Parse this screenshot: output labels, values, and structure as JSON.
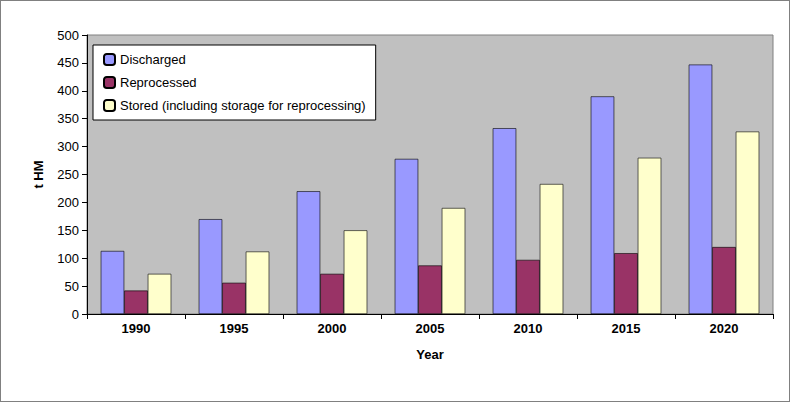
{
  "chart_data": {
    "type": "bar",
    "x_label": "Year",
    "y_label": "t HM",
    "categories": [
      "1990",
      "1995",
      "2000",
      "2005",
      "2010",
      "2015",
      "2020"
    ],
    "series": [
      {
        "name": "Discharged",
        "color": "#9999ff",
        "values": [
          113,
          170,
          220,
          278,
          333,
          390,
          447
        ]
      },
      {
        "name": "Reprocessed",
        "color": "#993366",
        "values": [
          42,
          56,
          72,
          87,
          97,
          109,
          120
        ]
      },
      {
        "name": "Stored (including storage for reprocessing)",
        "color": "#ffffcc",
        "values": [
          72,
          112,
          150,
          190,
          233,
          280,
          327
        ]
      }
    ],
    "ylim": [
      0,
      500
    ],
    "yticks": [
      0,
      50,
      100,
      150,
      200,
      250,
      300,
      350,
      400,
      450,
      500
    ],
    "grid": false,
    "legend": "upper left"
  }
}
